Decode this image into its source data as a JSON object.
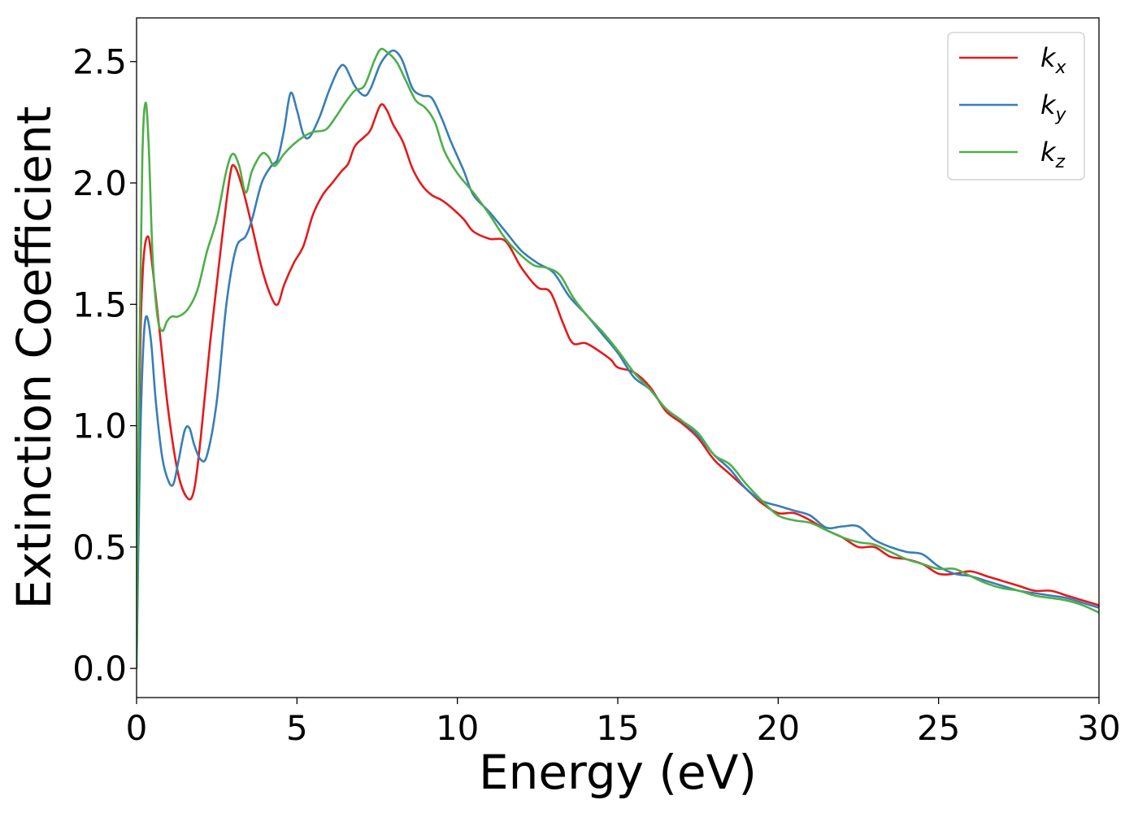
{
  "chart_data": {
    "type": "line",
    "xlabel": "Energy (eV)",
    "ylabel": "Extinction Coefficient",
    "xlim": [
      0,
      30
    ],
    "ylim": [
      -0.12,
      2.68
    ],
    "xticks": [
      "0",
      "5",
      "10",
      "15",
      "20",
      "25",
      "30"
    ],
    "yticks": [
      "0.0",
      "0.5",
      "1.0",
      "1.5",
      "2.0",
      "2.5"
    ],
    "grid": false,
    "legend_position": "top-right",
    "series": [
      {
        "name": "k",
        "subscript": "x",
        "color": "#e41a1c",
        "points": [
          [
            0,
            0
          ],
          [
            0.1,
            1.2
          ],
          [
            0.2,
            1.65
          ],
          [
            0.35,
            1.78
          ],
          [
            0.5,
            1.65
          ],
          [
            0.75,
            1.35
          ],
          [
            1.0,
            1.05
          ],
          [
            1.3,
            0.8
          ],
          [
            1.6,
            0.7
          ],
          [
            1.8,
            0.74
          ],
          [
            2.0,
            0.95
          ],
          [
            2.3,
            1.35
          ],
          [
            2.6,
            1.7
          ],
          [
            2.9,
            2.02
          ],
          [
            3.05,
            2.07
          ],
          [
            3.3,
            1.98
          ],
          [
            3.6,
            1.82
          ],
          [
            3.9,
            1.65
          ],
          [
            4.2,
            1.53
          ],
          [
            4.4,
            1.5
          ],
          [
            4.6,
            1.58
          ],
          [
            4.9,
            1.67
          ],
          [
            5.2,
            1.74
          ],
          [
            5.5,
            1.87
          ],
          [
            5.8,
            1.95
          ],
          [
            6.1,
            2.0
          ],
          [
            6.4,
            2.05
          ],
          [
            6.6,
            2.08
          ],
          [
            6.8,
            2.15
          ],
          [
            7.1,
            2.19
          ],
          [
            7.3,
            2.22
          ],
          [
            7.6,
            2.32
          ],
          [
            7.8,
            2.3
          ],
          [
            8.0,
            2.24
          ],
          [
            8.3,
            2.17
          ],
          [
            8.6,
            2.06
          ],
          [
            8.9,
            1.99
          ],
          [
            9.2,
            1.95
          ],
          [
            9.5,
            1.93
          ],
          [
            9.8,
            1.9
          ],
          [
            10.2,
            1.85
          ],
          [
            10.5,
            1.8
          ],
          [
            11.0,
            1.77
          ],
          [
            11.5,
            1.76
          ],
          [
            12.0,
            1.65
          ],
          [
            12.5,
            1.57
          ],
          [
            12.9,
            1.55
          ],
          [
            13.3,
            1.42
          ],
          [
            13.6,
            1.34
          ],
          [
            14.0,
            1.34
          ],
          [
            14.5,
            1.3
          ],
          [
            14.8,
            1.27
          ],
          [
            15.0,
            1.24
          ],
          [
            15.5,
            1.22
          ],
          [
            16.0,
            1.16
          ],
          [
            16.5,
            1.06
          ],
          [
            17.0,
            1.01
          ],
          [
            17.5,
            0.95
          ],
          [
            18.0,
            0.86
          ],
          [
            18.5,
            0.8
          ],
          [
            19.0,
            0.74
          ],
          [
            19.5,
            0.68
          ],
          [
            20.0,
            0.64
          ],
          [
            20.5,
            0.64
          ],
          [
            21.0,
            0.61
          ],
          [
            21.5,
            0.57
          ],
          [
            22.0,
            0.54
          ],
          [
            22.5,
            0.5
          ],
          [
            23.0,
            0.5
          ],
          [
            23.5,
            0.46
          ],
          [
            24.0,
            0.45
          ],
          [
            24.5,
            0.43
          ],
          [
            25.0,
            0.39
          ],
          [
            25.5,
            0.39
          ],
          [
            26.0,
            0.4
          ],
          [
            26.5,
            0.38
          ],
          [
            27.0,
            0.36
          ],
          [
            27.5,
            0.34
          ],
          [
            28.0,
            0.32
          ],
          [
            28.5,
            0.32
          ],
          [
            29.0,
            0.3
          ],
          [
            29.5,
            0.28
          ],
          [
            30.0,
            0.26
          ]
        ]
      },
      {
        "name": "k",
        "subscript": "y",
        "color": "#377eb8",
        "points": [
          [
            0,
            0
          ],
          [
            0.1,
            0.85
          ],
          [
            0.2,
            1.3
          ],
          [
            0.3,
            1.45
          ],
          [
            0.45,
            1.35
          ],
          [
            0.6,
            1.1
          ],
          [
            0.8,
            0.87
          ],
          [
            1.0,
            0.77
          ],
          [
            1.15,
            0.76
          ],
          [
            1.3,
            0.85
          ],
          [
            1.5,
            0.98
          ],
          [
            1.65,
            0.99
          ],
          [
            1.8,
            0.92
          ],
          [
            2.0,
            0.86
          ],
          [
            2.2,
            0.88
          ],
          [
            2.5,
            1.1
          ],
          [
            2.8,
            1.5
          ],
          [
            3.1,
            1.73
          ],
          [
            3.4,
            1.78
          ],
          [
            3.6,
            1.85
          ],
          [
            3.9,
            2.0
          ],
          [
            4.2,
            2.07
          ],
          [
            4.4,
            2.1
          ],
          [
            4.6,
            2.22
          ],
          [
            4.8,
            2.37
          ],
          [
            5.0,
            2.3
          ],
          [
            5.2,
            2.2
          ],
          [
            5.4,
            2.19
          ],
          [
            5.7,
            2.27
          ],
          [
            6.0,
            2.38
          ],
          [
            6.3,
            2.47
          ],
          [
            6.5,
            2.48
          ],
          [
            6.8,
            2.4
          ],
          [
            7.1,
            2.36
          ],
          [
            7.3,
            2.39
          ],
          [
            7.6,
            2.49
          ],
          [
            7.9,
            2.54
          ],
          [
            8.1,
            2.54
          ],
          [
            8.3,
            2.5
          ],
          [
            8.6,
            2.39
          ],
          [
            8.9,
            2.36
          ],
          [
            9.2,
            2.35
          ],
          [
            9.5,
            2.27
          ],
          [
            9.8,
            2.17
          ],
          [
            10.2,
            2.05
          ],
          [
            10.5,
            1.95
          ],
          [
            11.0,
            1.88
          ],
          [
            11.5,
            1.8
          ],
          [
            12.0,
            1.72
          ],
          [
            12.5,
            1.67
          ],
          [
            13.0,
            1.63
          ],
          [
            13.5,
            1.53
          ],
          [
            14.0,
            1.46
          ],
          [
            14.5,
            1.38
          ],
          [
            15.0,
            1.3
          ],
          [
            15.5,
            1.2
          ],
          [
            16.0,
            1.15
          ],
          [
            16.5,
            1.07
          ],
          [
            17.0,
            1.02
          ],
          [
            17.5,
            0.96
          ],
          [
            18.0,
            0.88
          ],
          [
            18.5,
            0.82
          ],
          [
            19.0,
            0.74
          ],
          [
            19.5,
            0.69
          ],
          [
            20.0,
            0.67
          ],
          [
            20.5,
            0.65
          ],
          [
            21.0,
            0.63
          ],
          [
            21.5,
            0.58
          ],
          [
            22.0,
            0.585
          ],
          [
            22.5,
            0.585
          ],
          [
            23.0,
            0.53
          ],
          [
            23.5,
            0.5
          ],
          [
            24.0,
            0.48
          ],
          [
            24.5,
            0.47
          ],
          [
            25.0,
            0.42
          ],
          [
            25.5,
            0.39
          ],
          [
            26.0,
            0.38
          ],
          [
            26.5,
            0.36
          ],
          [
            27.0,
            0.34
          ],
          [
            27.5,
            0.32
          ],
          [
            28.0,
            0.31
          ],
          [
            28.5,
            0.3
          ],
          [
            29.0,
            0.29
          ],
          [
            29.5,
            0.27
          ],
          [
            30.0,
            0.25
          ]
        ]
      },
      {
        "name": "k",
        "subscript": "z",
        "color": "#4daf4a",
        "points": [
          [
            0,
            0
          ],
          [
            0.08,
            1.2
          ],
          [
            0.18,
            2.1
          ],
          [
            0.28,
            2.33
          ],
          [
            0.38,
            2.15
          ],
          [
            0.5,
            1.7
          ],
          [
            0.65,
            1.45
          ],
          [
            0.8,
            1.39
          ],
          [
            0.95,
            1.43
          ],
          [
            1.1,
            1.45
          ],
          [
            1.3,
            1.45
          ],
          [
            1.6,
            1.48
          ],
          [
            1.9,
            1.56
          ],
          [
            2.2,
            1.72
          ],
          [
            2.5,
            1.85
          ],
          [
            2.8,
            2.05
          ],
          [
            3.0,
            2.12
          ],
          [
            3.2,
            2.07
          ],
          [
            3.4,
            1.96
          ],
          [
            3.6,
            2.05
          ],
          [
            3.9,
            2.12
          ],
          [
            4.1,
            2.11
          ],
          [
            4.3,
            2.07
          ],
          [
            4.6,
            2.12
          ],
          [
            4.9,
            2.16
          ],
          [
            5.2,
            2.19
          ],
          [
            5.5,
            2.21
          ],
          [
            5.9,
            2.22
          ],
          [
            6.2,
            2.27
          ],
          [
            6.5,
            2.33
          ],
          [
            6.8,
            2.38
          ],
          [
            7.1,
            2.4
          ],
          [
            7.4,
            2.5
          ],
          [
            7.6,
            2.55
          ],
          [
            7.8,
            2.54
          ],
          [
            8.1,
            2.5
          ],
          [
            8.4,
            2.42
          ],
          [
            8.7,
            2.34
          ],
          [
            9.0,
            2.31
          ],
          [
            9.3,
            2.25
          ],
          [
            9.6,
            2.13
          ],
          [
            10.0,
            2.04
          ],
          [
            10.5,
            1.96
          ],
          [
            11.0,
            1.87
          ],
          [
            11.5,
            1.77
          ],
          [
            12.0,
            1.7
          ],
          [
            12.4,
            1.66
          ],
          [
            12.8,
            1.65
          ],
          [
            13.2,
            1.62
          ],
          [
            13.6,
            1.53
          ],
          [
            14.0,
            1.46
          ],
          [
            14.5,
            1.39
          ],
          [
            15.0,
            1.31
          ],
          [
            15.5,
            1.22
          ],
          [
            16.0,
            1.15
          ],
          [
            16.5,
            1.07
          ],
          [
            17.0,
            1.02
          ],
          [
            17.5,
            0.97
          ],
          [
            18.0,
            0.88
          ],
          [
            18.5,
            0.84
          ],
          [
            19.0,
            0.76
          ],
          [
            19.5,
            0.69
          ],
          [
            20.0,
            0.63
          ],
          [
            20.5,
            0.61
          ],
          [
            21.0,
            0.6
          ],
          [
            21.5,
            0.57
          ],
          [
            22.0,
            0.54
          ],
          [
            22.5,
            0.52
          ],
          [
            23.0,
            0.51
          ],
          [
            23.5,
            0.48
          ],
          [
            24.0,
            0.45
          ],
          [
            24.5,
            0.43
          ],
          [
            25.0,
            0.41
          ],
          [
            25.5,
            0.41
          ],
          [
            26.0,
            0.38
          ],
          [
            26.5,
            0.35
          ],
          [
            27.0,
            0.33
          ],
          [
            27.5,
            0.32
          ],
          [
            28.0,
            0.3
          ],
          [
            28.5,
            0.29
          ],
          [
            29.0,
            0.28
          ],
          [
            29.5,
            0.26
          ],
          [
            30.0,
            0.23
          ]
        ]
      }
    ]
  }
}
